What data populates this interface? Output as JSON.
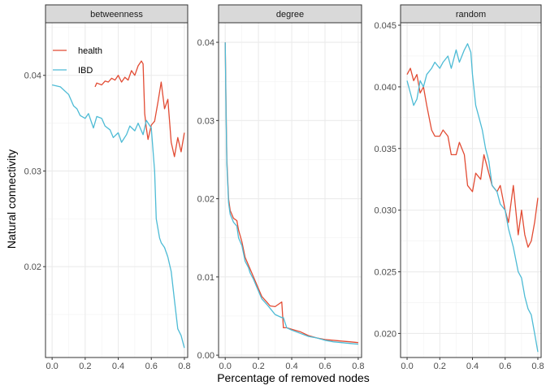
{
  "chart_data": {
    "type": "line",
    "xlabel": "Percentage of removed nodes",
    "ylabel": "Natural connectivity",
    "legend_position": "top-left inside first panel",
    "grid": true,
    "colors": {
      "health": "#E24B33",
      "IBD": "#4DBBD5"
    },
    "legend": [
      "health",
      "IBD"
    ],
    "panels": [
      {
        "name": "betweenness",
        "xlim": [
          -0.04,
          0.82
        ],
        "ylim": [
          0.0105,
          0.0455
        ],
        "x_ticks": [
          "0.0",
          "0.2",
          "0.4",
          "0.6",
          "0.8"
        ],
        "y_ticks": [
          "0.02",
          "0.03",
          "0.04"
        ],
        "series": [
          {
            "name": "health",
            "x": [
              0.26,
              0.27,
              0.3,
              0.32,
              0.34,
              0.36,
              0.38,
              0.4,
              0.42,
              0.44,
              0.46,
              0.48,
              0.5,
              0.52,
              0.54,
              0.55,
              0.56,
              0.57,
              0.58,
              0.6,
              0.62,
              0.64,
              0.66,
              0.68,
              0.7,
              0.72,
              0.74,
              0.76,
              0.78,
              0.8
            ],
            "values": [
              0.0388,
              0.0392,
              0.039,
              0.0394,
              0.0393,
              0.0397,
              0.0395,
              0.04,
              0.0393,
              0.0398,
              0.0395,
              0.0405,
              0.04,
              0.041,
              0.0415,
              0.0412,
              0.036,
              0.0345,
              0.0333,
              0.0348,
              0.0352,
              0.0372,
              0.0393,
              0.0365,
              0.0375,
              0.033,
              0.0315,
              0.0335,
              0.032,
              0.034
            ]
          },
          {
            "name": "IBD",
            "x": [
              0.0,
              0.05,
              0.1,
              0.13,
              0.15,
              0.17,
              0.2,
              0.22,
              0.25,
              0.27,
              0.3,
              0.32,
              0.35,
              0.37,
              0.4,
              0.42,
              0.45,
              0.47,
              0.5,
              0.52,
              0.55,
              0.57,
              0.6,
              0.62,
              0.63,
              0.65,
              0.66,
              0.68,
              0.7,
              0.72,
              0.74,
              0.76,
              0.78,
              0.8
            ],
            "values": [
              0.039,
              0.0388,
              0.038,
              0.0368,
              0.0365,
              0.0358,
              0.0355,
              0.036,
              0.0345,
              0.0357,
              0.0355,
              0.0347,
              0.0343,
              0.0335,
              0.034,
              0.033,
              0.0338,
              0.0347,
              0.0342,
              0.035,
              0.0338,
              0.0353,
              0.0345,
              0.03,
              0.025,
              0.023,
              0.0225,
              0.022,
              0.021,
              0.0195,
              0.0165,
              0.0135,
              0.0128,
              0.0115
            ]
          }
        ]
      },
      {
        "name": "degree",
        "xlim": [
          -0.04,
          0.82
        ],
        "ylim": [
          -0.0003,
          0.0425
        ],
        "x_ticks": [
          "0.0",
          "0.2",
          "0.4",
          "0.6",
          "0.8"
        ],
        "y_ticks": [
          "0.00",
          "0.01",
          "0.02",
          "0.03",
          "0.04"
        ],
        "series": [
          {
            "name": "health",
            "x": [
              0.0,
              0.005,
              0.01,
              0.02,
              0.03,
              0.05,
              0.07,
              0.08,
              0.1,
              0.12,
              0.14,
              0.15,
              0.17,
              0.2,
              0.22,
              0.25,
              0.27,
              0.3,
              0.32,
              0.34,
              0.35,
              0.37,
              0.4,
              0.45,
              0.5,
              0.55,
              0.6,
              0.65,
              0.7,
              0.75,
              0.8
            ],
            "values": [
              0.04,
              0.032,
              0.025,
              0.02,
              0.0185,
              0.0175,
              0.0172,
              0.016,
              0.0145,
              0.0125,
              0.0115,
              0.011,
              0.01,
              0.0085,
              0.0075,
              0.0068,
              0.0063,
              0.0062,
              0.0065,
              0.0068,
              0.0035,
              0.0035,
              0.0033,
              0.003,
              0.0025,
              0.0022,
              0.002,
              0.0019,
              0.0018,
              0.0017,
              0.0016
            ]
          },
          {
            "name": "IBD",
            "x": [
              0.0,
              0.005,
              0.01,
              0.02,
              0.03,
              0.05,
              0.07,
              0.08,
              0.1,
              0.12,
              0.14,
              0.15,
              0.17,
              0.2,
              0.22,
              0.25,
              0.27,
              0.3,
              0.32,
              0.34,
              0.35,
              0.37,
              0.4,
              0.45,
              0.5,
              0.55,
              0.6,
              0.65,
              0.7,
              0.75,
              0.8
            ],
            "values": [
              0.04,
              0.031,
              0.0245,
              0.0195,
              0.018,
              0.017,
              0.0165,
              0.015,
              0.014,
              0.012,
              0.0112,
              0.0105,
              0.0097,
              0.0082,
              0.0072,
              0.0065,
              0.006,
              0.0052,
              0.005,
              0.0048,
              0.0048,
              0.0035,
              0.0032,
              0.0028,
              0.0024,
              0.0022,
              0.0019,
              0.0017,
              0.0016,
              0.0015,
              0.0014
            ]
          }
        ]
      },
      {
        "name": "random",
        "xlim": [
          -0.04,
          0.82
        ],
        "ylim": [
          0.01805,
          0.0452
        ],
        "x_ticks": [
          "0.0",
          "0.2",
          "0.4",
          "0.6",
          "0.8"
        ],
        "y_ticks": [
          "0.020",
          "0.025",
          "0.030",
          "0.035",
          "0.040",
          "0.045"
        ],
        "series": [
          {
            "name": "health",
            "x": [
              0.0,
              0.02,
              0.04,
              0.06,
              0.08,
              0.1,
              0.12,
              0.15,
              0.17,
              0.2,
              0.22,
              0.25,
              0.27,
              0.3,
              0.32,
              0.35,
              0.37,
              0.4,
              0.42,
              0.45,
              0.47,
              0.5,
              0.52,
              0.55,
              0.57,
              0.6,
              0.62,
              0.65,
              0.68,
              0.7,
              0.72,
              0.74,
              0.76,
              0.78,
              0.8
            ],
            "values": [
              0.041,
              0.0415,
              0.0405,
              0.041,
              0.0395,
              0.04,
              0.0385,
              0.0365,
              0.036,
              0.036,
              0.0365,
              0.036,
              0.0345,
              0.0345,
              0.0355,
              0.0345,
              0.032,
              0.0315,
              0.033,
              0.0325,
              0.0345,
              0.033,
              0.032,
              0.0315,
              0.032,
              0.03,
              0.029,
              0.032,
              0.028,
              0.03,
              0.028,
              0.027,
              0.0275,
              0.029,
              0.031
            ]
          },
          {
            "name": "IBD",
            "x": [
              0.0,
              0.02,
              0.04,
              0.06,
              0.08,
              0.1,
              0.12,
              0.15,
              0.17,
              0.2,
              0.22,
              0.25,
              0.27,
              0.3,
              0.32,
              0.35,
              0.37,
              0.39,
              0.4,
              0.42,
              0.44,
              0.46,
              0.48,
              0.5,
              0.52,
              0.55,
              0.57,
              0.6,
              0.62,
              0.65,
              0.68,
              0.7,
              0.72,
              0.74,
              0.76,
              0.78,
              0.8
            ],
            "values": [
              0.0405,
              0.0395,
              0.0385,
              0.039,
              0.0405,
              0.04,
              0.041,
              0.0415,
              0.042,
              0.0415,
              0.042,
              0.0425,
              0.0415,
              0.043,
              0.042,
              0.043,
              0.0435,
              0.0428,
              0.041,
              0.0385,
              0.0375,
              0.0365,
              0.035,
              0.034,
              0.032,
              0.0315,
              0.0305,
              0.03,
              0.0285,
              0.027,
              0.025,
              0.0245,
              0.023,
              0.022,
              0.0215,
              0.02,
              0.0185
            ]
          }
        ]
      }
    ]
  }
}
